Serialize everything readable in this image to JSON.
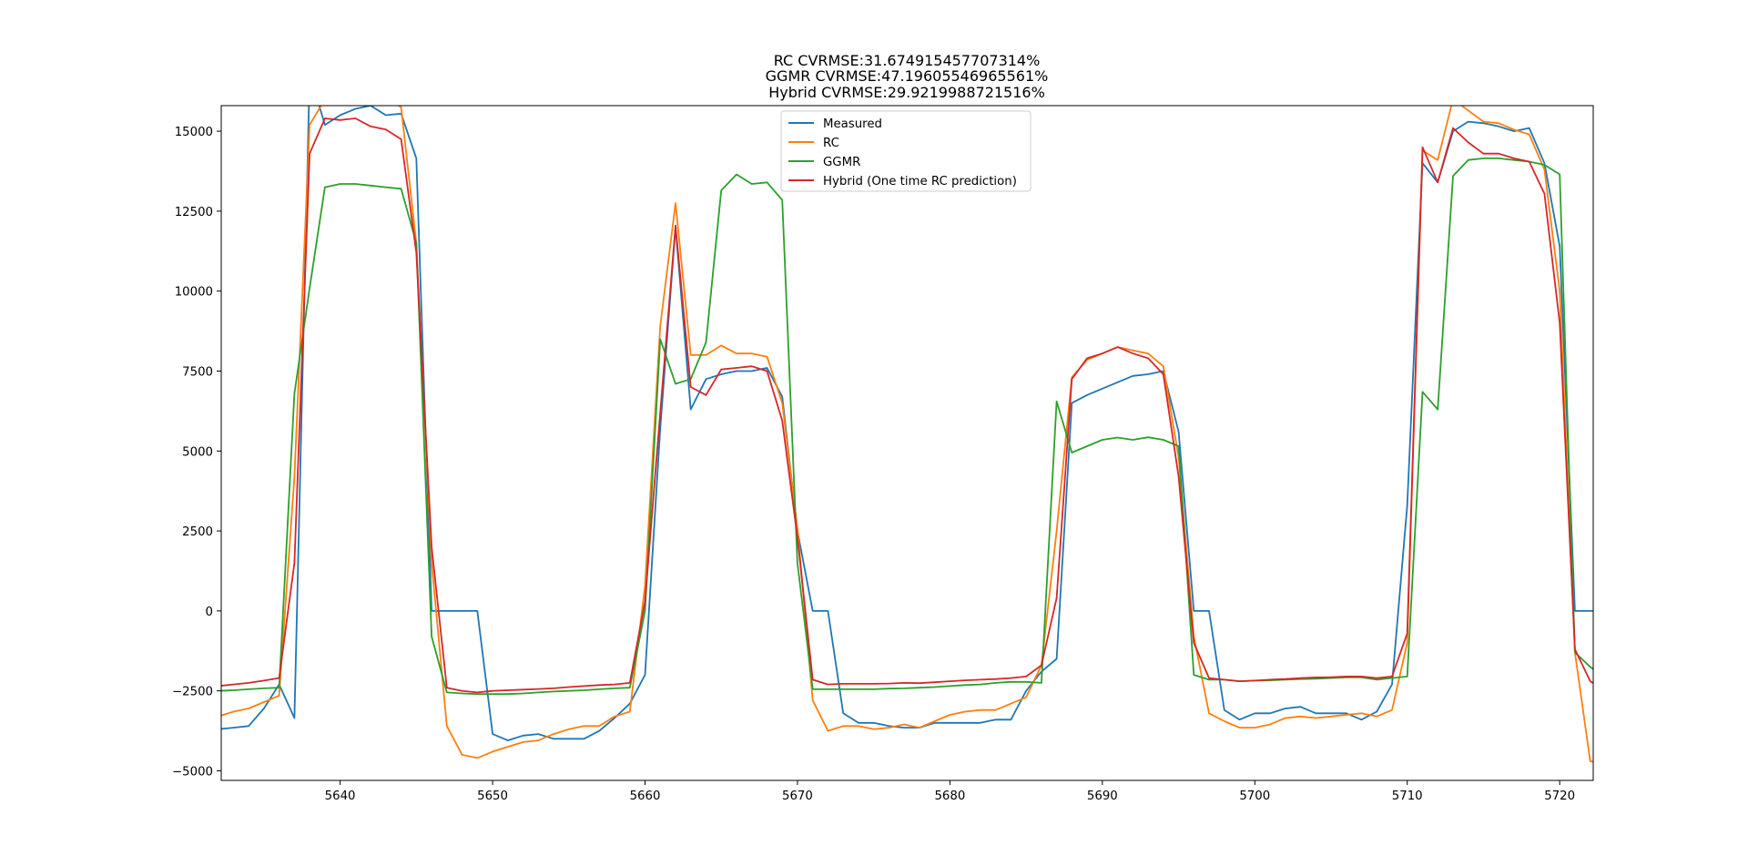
{
  "chart_data": {
    "type": "line",
    "title_lines": [
      "RC CVRMSE:31.674915457707314%",
      "GGMR CVRMSE:47.19605546965561%",
      "Hybrid CVRMSE:29.9219988721516%"
    ],
    "xlabel": "",
    "ylabel": "",
    "xlim": [
      5632.2,
      5722.2
    ],
    "ylim": [
      -5300,
      15800
    ],
    "xticks": [
      5640,
      5650,
      5660,
      5670,
      5680,
      5690,
      5700,
      5710,
      5720
    ],
    "yticks": [
      -5000,
      -2500,
      0,
      2500,
      5000,
      7500,
      10000,
      12500,
      15000
    ],
    "legend_position": "top-center",
    "colors": {
      "Measured": "#1f77b4",
      "RC": "#ff7f0e",
      "GGMR": "#2ca02c",
      "Hybrid": "#d62728"
    },
    "x": [
      5632,
      5633,
      5634,
      5635,
      5636,
      5637,
      5638,
      5639,
      5640,
      5641,
      5642,
      5643,
      5644,
      5645,
      5646,
      5647,
      5648,
      5649,
      5650,
      5651,
      5652,
      5653,
      5654,
      5655,
      5656,
      5657,
      5658,
      5659,
      5660,
      5661,
      5662,
      5663,
      5664,
      5665,
      5666,
      5667,
      5668,
      5669,
      5670,
      5671,
      5672,
      5673,
      5674,
      5675,
      5676,
      5677,
      5678,
      5679,
      5680,
      5681,
      5682,
      5683,
      5684,
      5685,
      5686,
      5687,
      5688,
      5689,
      5690,
      5691,
      5692,
      5693,
      5694,
      5695,
      5696,
      5697,
      5698,
      5699,
      5700,
      5701,
      5702,
      5703,
      5704,
      5705,
      5706,
      5707,
      5708,
      5709,
      5710,
      5711,
      5712,
      5713,
      5714,
      5715,
      5716,
      5717,
      5718,
      5719,
      5720,
      5721,
      5722,
      5723
    ],
    "series": [
      {
        "name": "Measured",
        "legend_label": "Measured",
        "values": [
          -3700,
          -3650,
          -3600,
          -3050,
          -2300,
          -3350,
          16800,
          15200,
          15500,
          15700,
          15800,
          15500,
          15550,
          14150,
          0,
          0,
          0,
          0,
          -3850,
          -4050,
          -3900,
          -3850,
          -4000,
          -4000,
          -4000,
          -3750,
          -3350,
          -2900,
          -2000,
          5700,
          12000,
          6300,
          7250,
          7400,
          7500,
          7500,
          7600,
          6700,
          2500,
          0,
          0,
          -3200,
          -3500,
          -3500,
          -3600,
          -3650,
          -3650,
          -3500,
          -3500,
          -3500,
          -3500,
          -3400,
          -3400,
          -2500,
          -1900,
          -1500,
          6500,
          6750,
          6950,
          7150,
          7350,
          7400,
          7500,
          5600,
          0,
          0,
          -3100,
          -3400,
          -3200,
          -3200,
          -3050,
          -3000,
          -3200,
          -3200,
          -3200,
          -3400,
          -3150,
          -2300,
          3300,
          14000,
          13400,
          15000,
          15300,
          15250,
          15150,
          15000,
          15100,
          14000,
          11400,
          0,
          0,
          0
        ],
        "line_color": "#1f77b4"
      },
      {
        "name": "RC",
        "legend_label": "RC",
        "values": [
          -3300,
          -3150,
          -3050,
          -2850,
          -2650,
          4200,
          15200,
          16000,
          15900,
          16000,
          16100,
          16050,
          15750,
          11500,
          1500,
          -3600,
          -4500,
          -4600,
          -4400,
          -4250,
          -4100,
          -4050,
          -3850,
          -3700,
          -3600,
          -3600,
          -3300,
          -3150,
          800,
          8900,
          12750,
          8000,
          8000,
          8300,
          8050,
          8050,
          7950,
          6500,
          2600,
          -2800,
          -3750,
          -3600,
          -3600,
          -3700,
          -3650,
          -3550,
          -3650,
          -3450,
          -3250,
          -3150,
          -3100,
          -3100,
          -2900,
          -2700,
          -1700,
          2500,
          7300,
          7850,
          8050,
          8250,
          8150,
          8050,
          7650,
          4800,
          -800,
          -3200,
          -3450,
          -3650,
          -3650,
          -3550,
          -3350,
          -3300,
          -3350,
          -3300,
          -3250,
          -3200,
          -3300,
          -3100,
          -1000,
          14400,
          14100,
          16000,
          15650,
          15300,
          15250,
          15050,
          14900,
          13800,
          10000,
          -1300,
          -4700,
          -4800
        ],
        "line_color": "#ff7f0e"
      },
      {
        "name": "GGMR",
        "legend_label": "GGMR",
        "values": [
          -2500,
          -2480,
          -2450,
          -2420,
          -2400,
          6800,
          10100,
          13250,
          13350,
          13350,
          13300,
          13250,
          13200,
          11500,
          -800,
          -2550,
          -2580,
          -2600,
          -2600,
          -2600,
          -2580,
          -2550,
          -2520,
          -2500,
          -2480,
          -2450,
          -2420,
          -2400,
          0,
          8500,
          7100,
          7250,
          8400,
          13150,
          13650,
          13350,
          13400,
          12850,
          1500,
          -2450,
          -2450,
          -2450,
          -2450,
          -2450,
          -2430,
          -2420,
          -2400,
          -2380,
          -2350,
          -2320,
          -2300,
          -2250,
          -2220,
          -2220,
          -2250,
          6550,
          4950,
          5150,
          5350,
          5420,
          5350,
          5430,
          5350,
          5150,
          -2000,
          -2150,
          -2150,
          -2200,
          -2180,
          -2170,
          -2150,
          -2130,
          -2120,
          -2100,
          -2080,
          -2080,
          -2150,
          -2100,
          -2050,
          6850,
          6300,
          13600,
          14100,
          14150,
          14150,
          14100,
          14050,
          13950,
          13650,
          -1300,
          -1750,
          -2100
        ],
        "line_color": "#2ca02c"
      },
      {
        "name": "Hybrid",
        "legend_label": "Hybrid (One time RC prediction)",
        "values": [
          -2350,
          -2300,
          -2250,
          -2180,
          -2100,
          1500,
          14300,
          15400,
          15350,
          15400,
          15150,
          15050,
          14750,
          11200,
          2000,
          -2400,
          -2500,
          -2550,
          -2500,
          -2480,
          -2460,
          -2440,
          -2420,
          -2380,
          -2350,
          -2320,
          -2300,
          -2250,
          300,
          6200,
          12050,
          7000,
          6750,
          7550,
          7600,
          7650,
          7500,
          5950,
          2300,
          -2150,
          -2300,
          -2280,
          -2280,
          -2280,
          -2270,
          -2250,
          -2260,
          -2230,
          -2200,
          -2170,
          -2150,
          -2130,
          -2100,
          -2050,
          -1700,
          400,
          7250,
          7900,
          8050,
          8250,
          8050,
          7900,
          7400,
          4200,
          -1000,
          -2100,
          -2150,
          -2200,
          -2180,
          -2150,
          -2130,
          -2100,
          -2080,
          -2070,
          -2050,
          -2050,
          -2100,
          -2050,
          -700,
          14500,
          13400,
          15100,
          14650,
          14300,
          14300,
          14150,
          14050,
          13050,
          9000,
          -1200,
          -2200,
          -2500
        ],
        "line_color": "#d62728"
      }
    ]
  }
}
